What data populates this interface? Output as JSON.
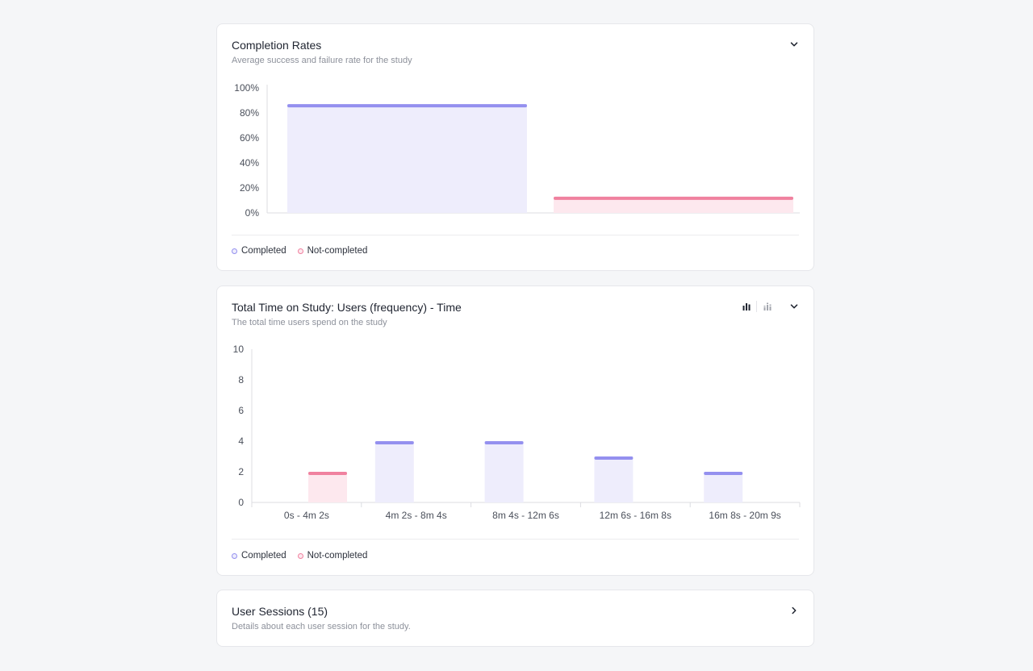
{
  "colors": {
    "completed_fill": "#eeedfc",
    "completed_cap": "#9490ef",
    "not_completed_fill": "#fde8ee",
    "not_completed_cap": "#f0819f",
    "axis": "#dcdde2",
    "tick_text": "#4a4f5a"
  },
  "completion_card": {
    "title": "Completion Rates",
    "subtitle": "Average success and failure rate for the study",
    "collapse_icon": "chevron-down-icon",
    "legend": [
      "Completed",
      "Not-completed"
    ]
  },
  "time_card": {
    "title": "Total Time on Study: Users (frequency) - Time",
    "subtitle": "The total time users spend on the study",
    "icons": [
      "bar-chart-icon",
      "stacked-bar-icon",
      "chevron-down-icon"
    ],
    "legend": [
      "Completed",
      "Not-completed"
    ]
  },
  "sessions_card": {
    "title": "User Sessions (15)",
    "subtitle": "Details about each user session for the study.",
    "expand_icon": "chevron-right-icon"
  },
  "chart_data": [
    {
      "type": "bar",
      "title": "Completion Rates",
      "categories": [
        "Completed",
        "Not-completed"
      ],
      "values": [
        87,
        13
      ],
      "ylim": [
        0,
        100
      ],
      "yticks": [
        "0%",
        "20%",
        "40%",
        "60%",
        "80%",
        "100%"
      ],
      "grid": false,
      "legend": "bottom-left"
    },
    {
      "type": "bar",
      "title": "Total Time on Study: Users (frequency) - Time",
      "categories": [
        "0s - 4m 2s",
        "4m 2s - 8m 4s",
        "8m 4s - 12m 6s",
        "12m 6s - 16m 8s",
        "16m 8s - 20m 9s"
      ],
      "series": [
        {
          "name": "Completed",
          "values": [
            0,
            4,
            4,
            3,
            2
          ]
        },
        {
          "name": "Not-completed",
          "values": [
            2,
            0,
            0,
            0,
            0
          ]
        }
      ],
      "ylim": [
        0,
        10
      ],
      "yticks": [
        "0",
        "2",
        "4",
        "6",
        "8",
        "10"
      ],
      "grid": false,
      "legend": "bottom-left"
    }
  ]
}
